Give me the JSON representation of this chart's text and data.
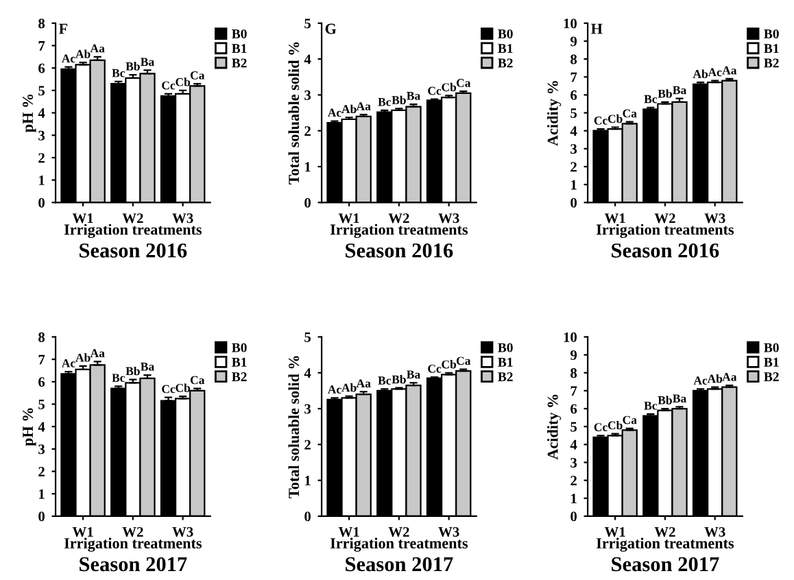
{
  "chart_data": [
    {
      "type": "bar",
      "xlabel": "Irrigation treatments",
      "ylabel": "pH %",
      "annotations": [
        "F",
        "Season 2016"
      ],
      "categories": [
        "W1",
        "W2",
        "W3"
      ],
      "ylim": [
        0,
        8
      ],
      "yticks": [
        0,
        1,
        2,
        3,
        4,
        5,
        6,
        7,
        8
      ],
      "legend": "top right",
      "series": [
        {
          "name": "B0",
          "color": "#000000",
          "values": [
            5.95,
            5.3,
            4.75
          ],
          "errors": [
            0.1,
            0.1,
            0.1
          ],
          "value_labels": [
            "Ac",
            "Bc",
            "Cc"
          ]
        },
        {
          "name": "B1",
          "color": "#ffffff",
          "values": [
            6.15,
            5.55,
            4.85
          ],
          "errors": [
            0.1,
            0.15,
            0.15
          ],
          "value_labels": [
            "Ab",
            "Bb",
            "Cb"
          ]
        },
        {
          "name": "B2",
          "color": "#c8c8c8",
          "values": [
            6.35,
            5.75,
            5.2
          ],
          "errors": [
            0.15,
            0.15,
            0.1
          ],
          "value_labels": [
            "Aa",
            "Ba",
            "Ca"
          ]
        }
      ]
    },
    {
      "type": "bar",
      "xlabel": "Irrigation treatments",
      "ylabel": "Total soluable solid %",
      "annotations": [
        "G",
        "Season 2016"
      ],
      "categories": [
        "W1",
        "W2",
        "W3"
      ],
      "ylim": [
        0,
        5
      ],
      "yticks": [
        0,
        1,
        2,
        3,
        4,
        5
      ],
      "legend": "top right",
      "series": [
        {
          "name": "B0",
          "color": "#000000",
          "values": [
            2.22,
            2.52,
            2.85
          ],
          "errors": [
            0.05,
            0.05,
            0.03
          ],
          "value_labels": [
            "Ac",
            "Bc",
            "Cc"
          ]
        },
        {
          "name": "B1",
          "color": "#ffffff",
          "values": [
            2.32,
            2.57,
            2.93
          ],
          "errors": [
            0.05,
            0.05,
            0.05
          ],
          "value_labels": [
            "Ab",
            "Bb",
            "Cb"
          ]
        },
        {
          "name": "B2",
          "color": "#c8c8c8",
          "values": [
            2.4,
            2.67,
            3.05
          ],
          "errors": [
            0.05,
            0.07,
            0.05
          ],
          "value_labels": [
            "Aa",
            "Ba",
            "Ca"
          ]
        }
      ]
    },
    {
      "type": "bar",
      "xlabel": "Irrigation treatments",
      "ylabel": "Acidity %",
      "annotations": [
        "H",
        "Season 2016"
      ],
      "categories": [
        "W1",
        "W2",
        "W3"
      ],
      "ylim": [
        0,
        10
      ],
      "yticks": [
        0,
        1,
        2,
        3,
        4,
        5,
        6,
        7,
        8,
        9,
        10
      ],
      "legend": "top right",
      "series": [
        {
          "name": "B0",
          "color": "#000000",
          "values": [
            4.0,
            5.2,
            6.6
          ],
          "errors": [
            0.1,
            0.1,
            0.1
          ],
          "value_labels": [
            "Cc",
            "Bc",
            "Ab"
          ]
        },
        {
          "name": "B1",
          "color": "#ffffff",
          "values": [
            4.1,
            5.5,
            6.7
          ],
          "errors": [
            0.1,
            0.1,
            0.1
          ],
          "value_labels": [
            "Cb",
            "Bb",
            "Ac"
          ]
        },
        {
          "name": "B2",
          "color": "#c8c8c8",
          "values": [
            4.4,
            5.6,
            6.8
          ],
          "errors": [
            0.1,
            0.2,
            0.1
          ],
          "value_labels": [
            "Ca",
            "Ba",
            "Aa"
          ]
        }
      ]
    },
    {
      "type": "bar",
      "xlabel": "Irrigation treatments",
      "ylabel": "pH %",
      "annotations": [
        "Season 2017"
      ],
      "categories": [
        "W1",
        "W2",
        "W3"
      ],
      "ylim": [
        0,
        8
      ],
      "yticks": [
        0,
        1,
        2,
        3,
        4,
        5,
        6,
        7,
        8
      ],
      "legend": "top right",
      "series": [
        {
          "name": "B0",
          "color": "#000000",
          "values": [
            6.35,
            5.7,
            5.15
          ],
          "errors": [
            0.1,
            0.1,
            0.15
          ],
          "value_labels": [
            "Ac",
            "Bc",
            "Cc"
          ]
        },
        {
          "name": "B1",
          "color": "#ffffff",
          "values": [
            6.55,
            5.95,
            5.25
          ],
          "errors": [
            0.15,
            0.15,
            0.1
          ],
          "value_labels": [
            "Ab",
            "Bb",
            "Cb"
          ]
        },
        {
          "name": "B2",
          "color": "#c8c8c8",
          "values": [
            6.75,
            6.15,
            5.6
          ],
          "errors": [
            0.15,
            0.15,
            0.1
          ],
          "value_labels": [
            "Aa",
            "Ba",
            "Ca"
          ]
        }
      ]
    },
    {
      "type": "bar",
      "xlabel": "Irrigation treatments",
      "ylabel": "Total soluable solid %",
      "annotations": [
        "Season 2017"
      ],
      "categories": [
        "W1",
        "W2",
        "W3"
      ],
      "ylim": [
        0,
        5
      ],
      "yticks": [
        0,
        1,
        2,
        3,
        4,
        5
      ],
      "legend": "top right",
      "series": [
        {
          "name": "B0",
          "color": "#000000",
          "values": [
            3.25,
            3.5,
            3.85
          ],
          "errors": [
            0.05,
            0.05,
            0.03
          ],
          "value_labels": [
            "Ac",
            "Bc",
            "Cc"
          ]
        },
        {
          "name": "B1",
          "color": "#ffffff",
          "values": [
            3.3,
            3.55,
            3.95
          ],
          "errors": [
            0.05,
            0.03,
            0.05
          ],
          "value_labels": [
            "Ab",
            "Bb",
            "Cb"
          ]
        },
        {
          "name": "B2",
          "color": "#c8c8c8",
          "values": [
            3.4,
            3.65,
            4.05
          ],
          "errors": [
            0.07,
            0.07,
            0.05
          ],
          "value_labels": [
            "Aa",
            "Ba",
            "Ca"
          ]
        }
      ]
    },
    {
      "type": "bar",
      "xlabel": "Irrigation treatments",
      "ylabel": "Acidity %",
      "annotations": [
        "Season 2017"
      ],
      "categories": [
        "W1",
        "W2",
        "W3"
      ],
      "ylim": [
        0,
        10
      ],
      "yticks": [
        0,
        1,
        2,
        3,
        4,
        5,
        6,
        7,
        8,
        9,
        10
      ],
      "legend": "top right",
      "series": [
        {
          "name": "B0",
          "color": "#000000",
          "values": [
            4.4,
            5.6,
            7.0
          ],
          "errors": [
            0.1,
            0.1,
            0.1
          ],
          "value_labels": [
            "Cc",
            "Bc",
            "Ac"
          ]
        },
        {
          "name": "B1",
          "color": "#ffffff",
          "values": [
            4.5,
            5.9,
            7.1
          ],
          "errors": [
            0.1,
            0.1,
            0.1
          ],
          "value_labels": [
            "Cb",
            "Bb",
            "Ab"
          ]
        },
        {
          "name": "B2",
          "color": "#c8c8c8",
          "values": [
            4.8,
            6.0,
            7.2
          ],
          "errors": [
            0.1,
            0.1,
            0.1
          ],
          "value_labels": [
            "Ca",
            "Ba",
            "Aa"
          ]
        }
      ]
    }
  ]
}
